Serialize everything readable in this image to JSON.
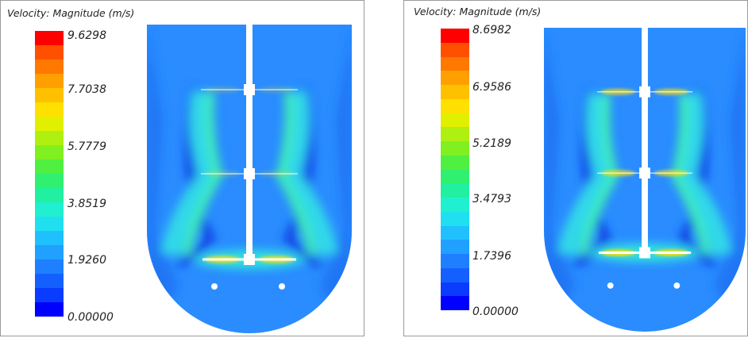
{
  "panels": [
    {
      "title": "Velocity: Magnitude (m/s)",
      "ticks": [
        "9.6298",
        "7.7038",
        "5.7779",
        "3.8519",
        "1.9260",
        "0.00000"
      ],
      "impellers": 3
    },
    {
      "title": "Velocity: Magnitude (m/s)",
      "ticks": [
        "8.6982",
        "6.9586",
        "5.2189",
        "3.4793",
        "1.7396",
        "0.00000"
      ],
      "impellers": 3
    }
  ],
  "colormap": [
    "#0000ff",
    "#0a3cff",
    "#1460ff",
    "#1e80ff",
    "#20a0ff",
    "#20c0ff",
    "#20e0f0",
    "#20f0d0",
    "#20f0a0",
    "#30f070",
    "#50f040",
    "#80f020",
    "#b0f010",
    "#e0f000",
    "#ffe000",
    "#ffc000",
    "#ffa000",
    "#ff7800",
    "#ff5000",
    "#ff0000"
  ]
}
